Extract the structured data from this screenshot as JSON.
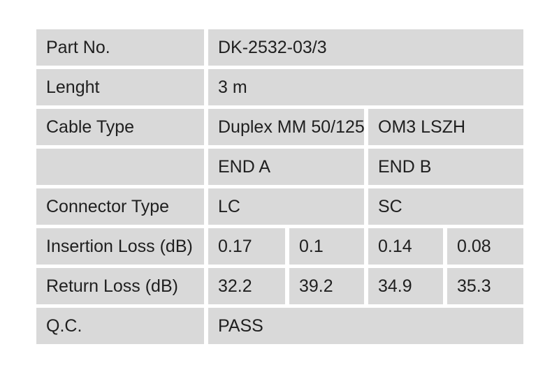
{
  "table": {
    "title": "fiber-patch-cable-qc-spec-table",
    "colors": {
      "page_bg": "#ffffff",
      "cell_bg": "#d9d9d9",
      "text": "#1f1f1f"
    },
    "rows": [
      {
        "label": "Part No.",
        "value": "DK-2532-03/3"
      },
      {
        "label": "Lenght",
        "value": "3 m"
      },
      {
        "label": "Cable Type",
        "value_a": "Duplex MM 50/125",
        "value_b": "OM3 LSZH"
      },
      {
        "label": "",
        "value_a": "END A",
        "value_b": "END B"
      },
      {
        "label": "Connector Type",
        "value_a": "LC",
        "value_b": "SC"
      },
      {
        "label": "Insertion Loss (dB)",
        "end_a_1": "0.17",
        "end_a_2": "0.1",
        "end_b_1": "0.14",
        "end_b_2": "0.08"
      },
      {
        "label": "Return Loss (dB)",
        "end_a_1": "32.2",
        "end_a_2": "39.2",
        "end_b_1": "34.9",
        "end_b_2": "35.3"
      },
      {
        "label": "Q.C.",
        "value": "PASS"
      }
    ]
  }
}
